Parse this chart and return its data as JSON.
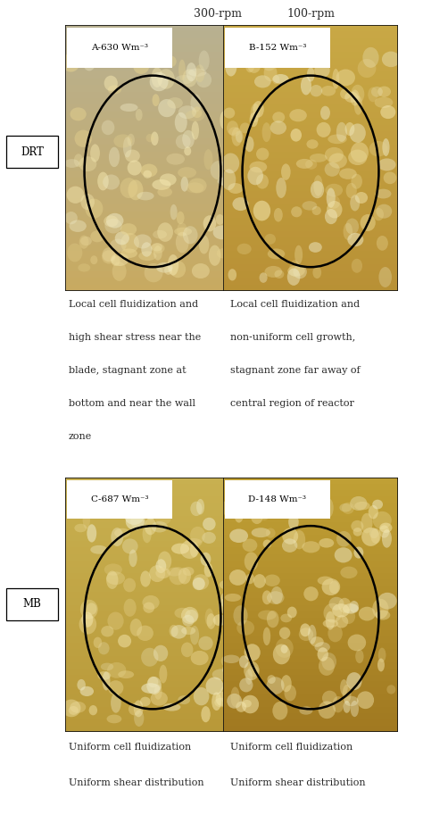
{
  "title_col1": "300-rpm",
  "title_col2": "100-rpm",
  "row1_label": "DRT",
  "row2_label": "MB",
  "panel_labels": [
    "A-630 Wm⁻³",
    "B-152 Wm⁻³",
    "C-687 Wm⁻³",
    "D-148 Wm⁻³"
  ],
  "desc_row1_col1": "Local cell fluidization and\nhigh shear stress near the\nblade, stagnant zone at\nbottom and near the wall\nzone",
  "desc_row1_col2": "Local cell fluidization and\nnon-uniform cell growth,\nstagnant zone far away of\ncentral region of reactor",
  "desc_row2_col1": "Uniform cell fluidization\nUniform shear distribution",
  "desc_row2_col2": "Uniform cell fluidization\nUniform shear distribution",
  "bg_color": "#ffffff",
  "text_color": "#2a2a2a",
  "ellipse_color": "#000000",
  "border_color": "#111111",
  "label_box_color": "#ffffff",
  "font_size_header": 9,
  "font_size_panel": 7.5,
  "font_size_desc": 8.0,
  "font_size_row_label": 8.5
}
